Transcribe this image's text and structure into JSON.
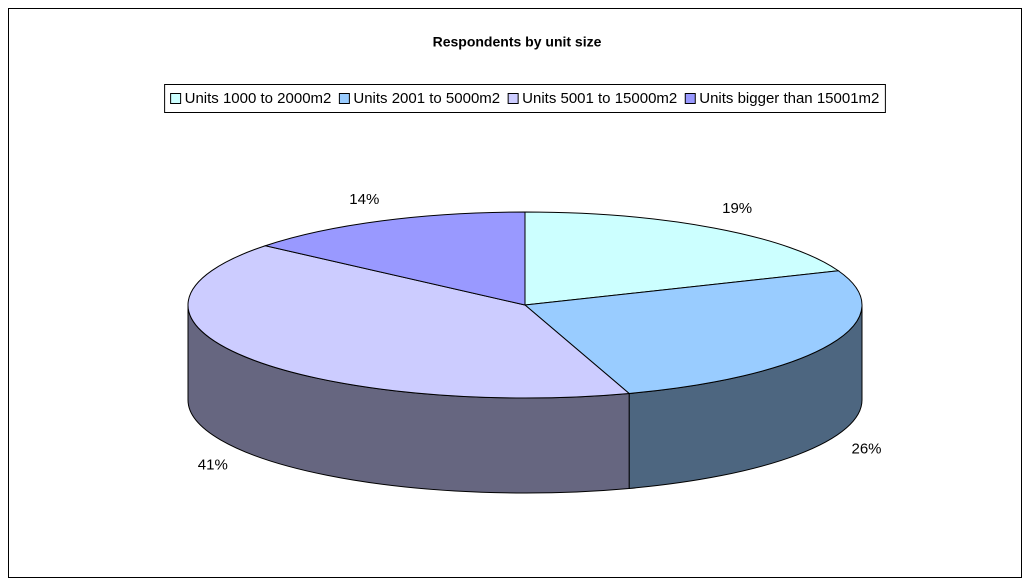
{
  "chart_data": {
    "type": "pie3d",
    "title": "Respondents by unit size",
    "categories": [
      "Units 1000 to 2000m2",
      "Units 2001 to 5000m2",
      "Units 5001 to 15000m2",
      "Units bigger than 15001m2"
    ],
    "values": [
      19,
      26,
      41,
      14
    ],
    "value_labels": [
      "19%",
      "26%",
      "41%",
      "14%"
    ],
    "colors": [
      "#ccffff",
      "#99ccff",
      "#ccccff",
      "#9999ff"
    ],
    "legend": "top"
  }
}
